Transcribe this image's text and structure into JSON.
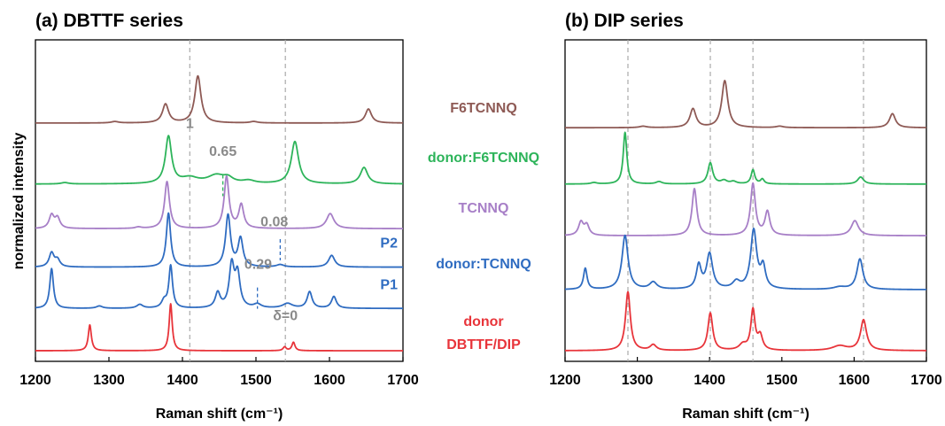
{
  "ylabel": "normalized intensity",
  "xlabel": "Raman shift (cm⁻¹)",
  "colors": {
    "F6TCNNQ": "#8e5a55",
    "donor:F6TCNNQ": "#2db45a",
    "TCNNQ": "#a77fc7",
    "donor:TCNNQ": "#2f6cc1",
    "donor": "#e8343a",
    "annotation": "#8a8a8a",
    "guide": "#aaaaaa"
  },
  "legend_labels": [
    {
      "text": "F6TCNNQ",
      "series": "F6TCNNQ"
    },
    {
      "text": "donor:F6TCNNQ",
      "series": "donor:F6TCNNQ"
    },
    {
      "text": "TCNNQ",
      "series": "TCNNQ"
    },
    {
      "text": "donor:TCNNQ",
      "series": "donor:TCNNQ"
    },
    {
      "text": "donor",
      "series": "donor"
    },
    {
      "text": "DBTTF/DIP",
      "series": "donor"
    }
  ],
  "chart_data": [
    {
      "type": "line",
      "title": "(a) DBTTF series",
      "xlabel": "Raman shift (cm⁻¹)",
      "ylabel": "normalized intensity",
      "xlim": [
        1200,
        1700
      ],
      "xticks": [
        1200,
        1300,
        1400,
        1500,
        1600,
        1700
      ],
      "guides": [
        1410,
        1540
      ],
      "series": [
        {
          "name": "F6TCNNQ",
          "offset": 4.85,
          "peaks": [
            [
              1377,
              0.4,
              5
            ],
            [
              1421,
              1.0,
              5
            ],
            [
              1308,
              0.03,
              6
            ],
            [
              1497,
              0.03,
              6
            ],
            [
              1653,
              0.3,
              5
            ]
          ]
        },
        {
          "name": "donor:F6TCNNQ",
          "offset": 3.55,
          "peaks": [
            [
              1381,
              1.0,
              5
            ],
            [
              1410,
              0.12,
              14
            ],
            [
              1446,
              0.17,
              14
            ],
            [
              1462,
              0.1,
              8
            ],
            [
              1490,
              0.06,
              10
            ],
            [
              1553,
              0.9,
              6
            ],
            [
              1647,
              0.35,
              6
            ],
            [
              1240,
              0.03,
              6
            ]
          ]
        },
        {
          "name": "TCNNQ",
          "offset": 2.6,
          "peaks": [
            [
              1222,
              0.28,
              4
            ],
            [
              1230,
              0.22,
              4
            ],
            [
              1379,
              1.0,
              4
            ],
            [
              1460,
              1.1,
              4
            ],
            [
              1480,
              0.5,
              4
            ],
            [
              1601,
              0.32,
              6
            ],
            [
              1340,
              0.03,
              5
            ]
          ]
        },
        {
          "name": "donor:TCNNQ",
          "label": "P2",
          "offset": 1.78,
          "peaks": [
            [
              1222,
              0.3,
              4
            ],
            [
              1230,
              0.15,
              4
            ],
            [
              1381,
              1.15,
              3.5
            ],
            [
              1462,
              1.1,
              4
            ],
            [
              1479,
              0.6,
              4
            ],
            [
              1533,
              0.05,
              6
            ],
            [
              1603,
              0.25,
              5
            ]
          ]
        },
        {
          "name": "donor:TCNNQ",
          "label": "P1",
          "offset": 0.9,
          "peaks": [
            [
              1222,
              0.85,
              3
            ],
            [
              1287,
              0.05,
              5
            ],
            [
              1342,
              0.08,
              5
            ],
            [
              1375,
              0.15,
              4
            ],
            [
              1384,
              0.9,
              3
            ],
            [
              1448,
              0.32,
              4
            ],
            [
              1467,
              0.9,
              4
            ],
            [
              1475,
              0.7,
              4
            ],
            [
              1502,
              0.08,
              6
            ],
            [
              1543,
              0.1,
              8
            ],
            [
              1573,
              0.35,
              4
            ],
            [
              1606,
              0.25,
              4
            ]
          ]
        },
        {
          "name": "donor",
          "offset": 0.0,
          "peaks": [
            [
              1274,
              0.55,
              2.5
            ],
            [
              1384,
              1.0,
              2.5
            ],
            [
              1539,
              0.08,
              2.5
            ],
            [
              1551,
              0.18,
              2.5
            ]
          ]
        }
      ],
      "annotations": [
        {
          "text": "1",
          "x": 1410,
          "y_level": 4.75
        },
        {
          "text": "0.65",
          "x": 1455,
          "y_level": 4.15
        },
        {
          "text": "0.08",
          "x": 1525,
          "y_level": 2.65
        },
        {
          "text": "0.29",
          "x": 1503,
          "y_level": 1.75
        },
        {
          "text": "δ=0",
          "x": 1540,
          "y_level": 0.65
        }
      ],
      "markers": [
        {
          "x": 1455,
          "y_level": 3.52
        },
        {
          "x": 1533,
          "y_level": 2.15
        },
        {
          "x": 1502,
          "y_level": 1.12
        }
      ]
    },
    {
      "type": "line",
      "title": "(b) DIP series",
      "xlabel": "Raman shift (cm⁻¹)",
      "xlim": [
        1200,
        1700
      ],
      "xticks": [
        1200,
        1300,
        1400,
        1500,
        1600,
        1700
      ],
      "guides": [
        1287,
        1401,
        1460,
        1613
      ],
      "series": [
        {
          "name": "F6TCNNQ",
          "offset": 4.75,
          "peaks": [
            [
              1377,
              0.4,
              5
            ],
            [
              1421,
              1.0,
              5
            ],
            [
              1308,
              0.03,
              6
            ],
            [
              1497,
              0.03,
              6
            ],
            [
              1653,
              0.3,
              5
            ]
          ]
        },
        {
          "name": "donor:F6TCNNQ",
          "offset": 3.55,
          "peaks": [
            [
              1283,
              1.1,
              3
            ],
            [
              1330,
              0.05,
              5
            ],
            [
              1401,
              0.45,
              4
            ],
            [
              1420,
              0.07,
              5
            ],
            [
              1433,
              0.05,
              5
            ],
            [
              1460,
              0.3,
              3
            ],
            [
              1473,
              0.1,
              3
            ],
            [
              1609,
              0.15,
              5
            ],
            [
              1240,
              0.03,
              5
            ]
          ]
        },
        {
          "name": "TCNNQ",
          "offset": 2.45,
          "peaks": [
            [
              1222,
              0.28,
              4
            ],
            [
              1230,
              0.22,
              4
            ],
            [
              1379,
              1.0,
              4
            ],
            [
              1460,
              1.1,
              4
            ],
            [
              1480,
              0.5,
              4
            ],
            [
              1601,
              0.32,
              6
            ]
          ]
        },
        {
          "name": "donor:TCNNQ",
          "offset": 1.3,
          "peaks": [
            [
              1228,
              0.45,
              3
            ],
            [
              1283,
              1.15,
              5
            ],
            [
              1322,
              0.15,
              6
            ],
            [
              1385,
              0.5,
              4
            ],
            [
              1400,
              0.75,
              5
            ],
            [
              1437,
              0.15,
              6
            ],
            [
              1461,
              1.25,
              5
            ],
            [
              1474,
              0.45,
              4
            ],
            [
              1580,
              0.05,
              10
            ],
            [
              1608,
              0.65,
              5
            ]
          ]
        },
        {
          "name": "donor",
          "offset": 0.0,
          "peaks": [
            [
              1287,
              1.25,
              4
            ],
            [
              1322,
              0.12,
              5
            ],
            [
              1401,
              0.8,
              4
            ],
            [
              1446,
              0.12,
              6
            ],
            [
              1460,
              0.85,
              3.5
            ],
            [
              1470,
              0.3,
              4
            ],
            [
              1580,
              0.1,
              12
            ],
            [
              1613,
              0.65,
              5
            ]
          ]
        }
      ]
    }
  ]
}
